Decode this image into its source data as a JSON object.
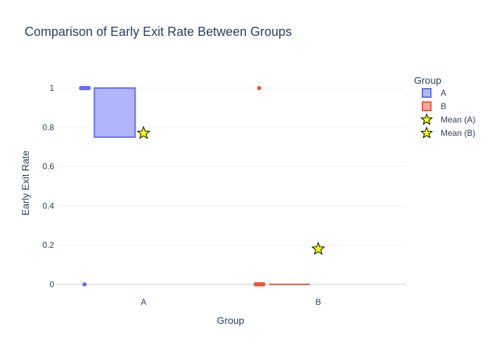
{
  "chart_data": {
    "type": "box",
    "title": "Comparison of Early Exit Rate Between Groups",
    "xlabel": "Group",
    "ylabel": "Early Exit Rate",
    "categories": [
      "A",
      "B"
    ],
    "ylim": [
      -0.04,
      1.09
    ],
    "yticks": [
      0,
      0.2,
      0.4,
      0.6,
      0.8,
      1
    ],
    "ytick_labels": [
      "0",
      "0.2",
      "0.4",
      "0.6",
      "0.8",
      "1"
    ],
    "grid": true,
    "legend_title": "Group",
    "legend_position": "top-right",
    "series": [
      {
        "name": "A",
        "category": "A",
        "color": "#636efa",
        "box": {
          "q1": 0.75,
          "median": 1,
          "q3": 1,
          "lower_fence": 0.75,
          "upper_fence": 1
        },
        "points": [
          {
            "y": 1,
            "count": "many"
          },
          {
            "y": 0,
            "count": "few"
          }
        ]
      },
      {
        "name": "B",
        "category": "B",
        "color": "#ef553b",
        "box": {
          "q1": 0,
          "median": 0,
          "q3": 0,
          "lower_fence": 0,
          "upper_fence": 0
        },
        "points": [
          {
            "y": 0,
            "count": "many"
          },
          {
            "y": 1,
            "count": "few"
          }
        ]
      },
      {
        "name": "Mean (A)",
        "category": "A",
        "type": "marker",
        "marker": "star",
        "color": "#ffff00",
        "y": 0.77
      },
      {
        "name": "Mean (B)",
        "category": "B",
        "type": "marker",
        "marker": "star",
        "color": "#ffff00",
        "y": 0.18
      }
    ]
  }
}
